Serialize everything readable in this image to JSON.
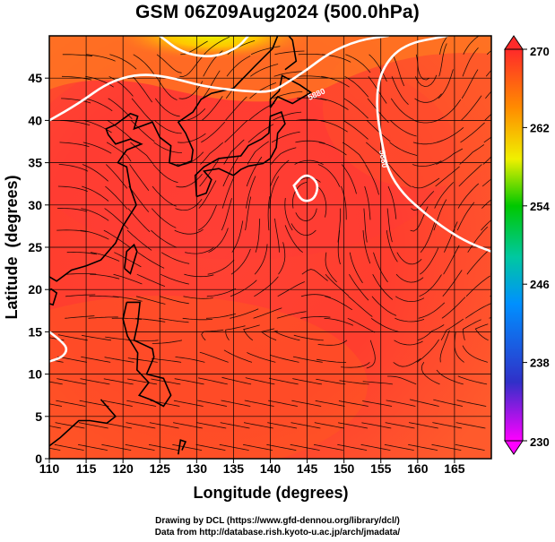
{
  "title": "GSM 06Z09Aug2024 (500.0hPa)",
  "credits": {
    "line1": "Drawing by DCL (https://www.gfd-dennou.org/library/dcl/)",
    "line2": "Data from http://database.rish.kyoto-u.ac.jp/arch/jmadata/"
  },
  "chart_data": {
    "type": "heatmap",
    "xlabel": "Longitude (degrees)",
    "ylabel": "Latitude  (degrees)",
    "xlim": [
      110,
      170
    ],
    "ylim": [
      0,
      50
    ],
    "xticks": [
      110,
      115,
      120,
      125,
      130,
      135,
      140,
      145,
      150,
      155,
      160,
      165
    ],
    "yticks": [
      0,
      5,
      10,
      15,
      20,
      25,
      30,
      35,
      40,
      45
    ],
    "grid": true,
    "colorbar": {
      "min": 230,
      "max": 270,
      "ticks": [
        230,
        238,
        246,
        254,
        262,
        270
      ],
      "colors": [
        "#ff00ff",
        "#2a2ac8",
        "#0080ff",
        "#00c8a0",
        "#00c800",
        "#f0f000",
        "#ff8c00",
        "#ff2a2a"
      ]
    },
    "contours": [
      {
        "label": "5880",
        "points": [
          [
            110,
            40
          ],
          [
            114,
            42
          ],
          [
            118,
            44.5
          ],
          [
            122,
            45.5
          ],
          [
            126,
            45.2
          ],
          [
            131,
            44
          ],
          [
            136,
            43.5
          ],
          [
            140,
            43.3
          ],
          [
            142,
            44.3
          ],
          [
            145,
            46
          ],
          [
            148,
            48
          ],
          [
            152,
            49.5
          ],
          [
            156,
            50
          ]
        ]
      },
      {
        "label": "5880",
        "points": [
          [
            143.2,
            32.3
          ],
          [
            144.8,
            33.8
          ],
          [
            146.6,
            32.6
          ],
          [
            146,
            30.6
          ],
          [
            144.2,
            30.4
          ],
          [
            143.2,
            32.3
          ]
        ]
      },
      {
        "label": "5880",
        "points": [
          [
            164,
            50
          ],
          [
            158,
            49
          ],
          [
            155,
            46
          ],
          [
            154.3,
            42
          ],
          [
            155.2,
            37
          ],
          [
            156,
            34
          ],
          [
            158,
            31.3
          ],
          [
            161,
            29
          ],
          [
            164,
            27
          ],
          [
            167,
            25.5
          ],
          [
            170,
            24.5
          ]
        ]
      },
      {
        "label": "5880",
        "points": [
          [
            110,
            15
          ],
          [
            111.5,
            14
          ],
          [
            112.5,
            13
          ],
          [
            111.8,
            12
          ],
          [
            110,
            11.5
          ]
        ]
      },
      {
        "label": "",
        "points": [
          [
            125,
            50
          ],
          [
            128,
            48
          ],
          [
            132,
            47.4
          ],
          [
            135.5,
            48.5
          ],
          [
            137,
            50
          ]
        ]
      }
    ],
    "annotations": [
      "5880",
      "5880"
    ]
  }
}
